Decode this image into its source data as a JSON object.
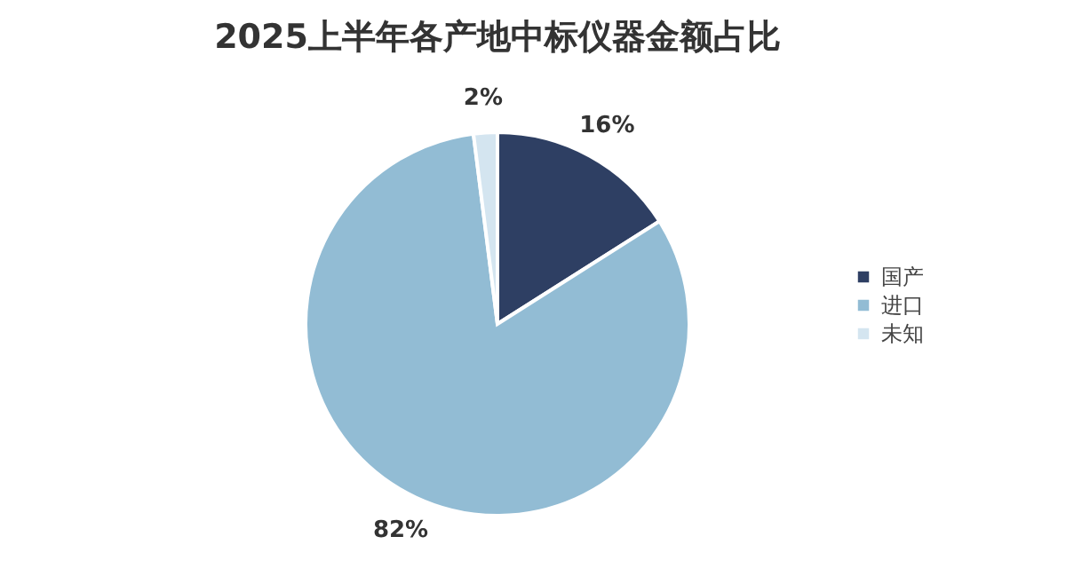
{
  "chart_data": {
    "type": "pie",
    "title": "2025上半年各产地中标仪器金额占比",
    "categories": [
      "国产",
      "进口",
      "未知"
    ],
    "values": [
      16,
      82,
      2
    ],
    "colors": [
      "#2e3f63",
      "#92bcd4",
      "#d4e5f0"
    ],
    "value_labels": [
      "16%",
      "82%",
      "2%"
    ],
    "legend": "right"
  }
}
